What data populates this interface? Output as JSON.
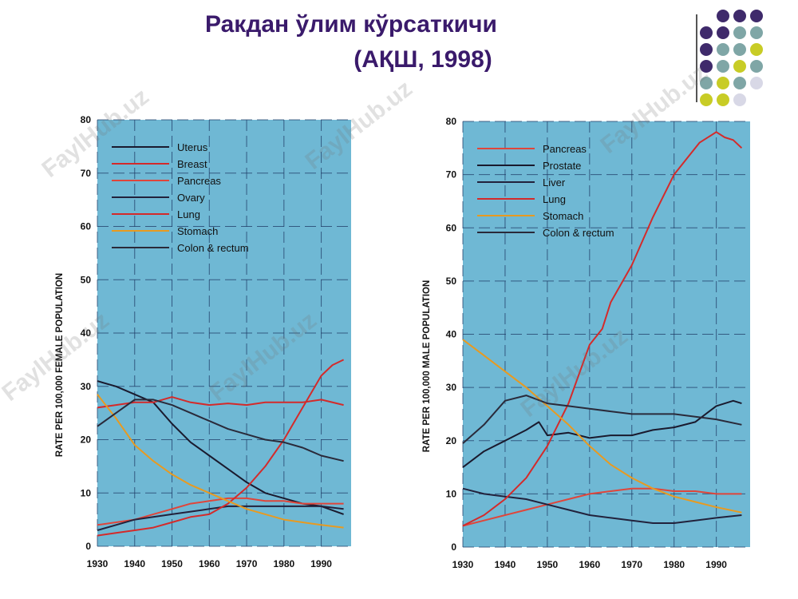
{
  "slide": {
    "title_line1": "Ракдан ўлим кўрсаткичи",
    "title_line2": "(АҚШ, 1998)",
    "watermark": "FaylHub.uz"
  },
  "decor_colors": [
    "#3f2a6b",
    "#7fa6a6",
    "#c8cc26",
    "#d8d8e6"
  ],
  "chart_data": [
    {
      "type": "line",
      "ylabel": "RATE PER 100,000 FEMALE POPULATION",
      "xlabel": "",
      "xlim": [
        1930,
        1998
      ],
      "ylim": [
        0,
        80
      ],
      "xticks": [
        1930,
        1940,
        1950,
        1960,
        1970,
        1980,
        1990
      ],
      "yticks": [
        0,
        10,
        20,
        30,
        40,
        50,
        60,
        70,
        80
      ],
      "legend_position": "top-left",
      "series": [
        {
          "name": "Uterus",
          "color": "#1a1a2e",
          "points": [
            [
              1930,
              31
            ],
            [
              1935,
              30
            ],
            [
              1940,
              28.5
            ],
            [
              1945,
              27
            ],
            [
              1950,
              23
            ],
            [
              1955,
              19.5
            ],
            [
              1960,
              17
            ],
            [
              1965,
              14.5
            ],
            [
              1970,
              12
            ],
            [
              1975,
              10
            ],
            [
              1980,
              9
            ],
            [
              1985,
              8
            ],
            [
              1990,
              7.5
            ],
            [
              1996,
              6
            ]
          ]
        },
        {
          "name": "Breast",
          "color": "#d42a2a",
          "points": [
            [
              1930,
              26
            ],
            [
              1935,
              26.5
            ],
            [
              1940,
              27
            ],
            [
              1945,
              27
            ],
            [
              1950,
              28
            ],
            [
              1955,
              27
            ],
            [
              1960,
              26.5
            ],
            [
              1965,
              26.8
            ],
            [
              1970,
              26.5
            ],
            [
              1975,
              27
            ],
            [
              1980,
              27
            ],
            [
              1985,
              27
            ],
            [
              1990,
              27.5
            ],
            [
              1996,
              26.5
            ]
          ]
        },
        {
          "name": "Pancreas",
          "color": "#e0453a",
          "points": [
            [
              1930,
              4
            ],
            [
              1935,
              4.5
            ],
            [
              1940,
              5
            ],
            [
              1945,
              6
            ],
            [
              1950,
              7
            ],
            [
              1955,
              8
            ],
            [
              1960,
              8.5
            ],
            [
              1965,
              9
            ],
            [
              1970,
              9
            ],
            [
              1975,
              8.5
            ],
            [
              1980,
              8.5
            ],
            [
              1985,
              8
            ],
            [
              1990,
              8
            ],
            [
              1996,
              8
            ]
          ]
        },
        {
          "name": "Ovary",
          "color": "#22223c",
          "points": [
            [
              1930,
              3
            ],
            [
              1935,
              4
            ],
            [
              1940,
              5
            ],
            [
              1945,
              5.5
            ],
            [
              1950,
              6
            ],
            [
              1955,
              6.5
            ],
            [
              1960,
              7
            ],
            [
              1965,
              7.5
            ],
            [
              1970,
              7.5
            ],
            [
              1975,
              7.5
            ],
            [
              1980,
              7.5
            ],
            [
              1985,
              7.5
            ],
            [
              1990,
              7.5
            ],
            [
              1996,
              7
            ]
          ]
        },
        {
          "name": "Lung",
          "color": "#d42a2a",
          "points": [
            [
              1930,
              2
            ],
            [
              1935,
              2.5
            ],
            [
              1940,
              3
            ],
            [
              1945,
              3.5
            ],
            [
              1950,
              4.5
            ],
            [
              1955,
              5.5
            ],
            [
              1960,
              6
            ],
            [
              1965,
              8
            ],
            [
              1970,
              11
            ],
            [
              1975,
              15
            ],
            [
              1980,
              20
            ],
            [
              1985,
              26
            ],
            [
              1990,
              32
            ],
            [
              1993,
              34
            ],
            [
              1996,
              35
            ]
          ]
        },
        {
          "name": "Stomach",
          "color": "#e89a20",
          "points": [
            [
              1930,
              28.5
            ],
            [
              1935,
              24
            ],
            [
              1940,
              19
            ],
            [
              1945,
              16
            ],
            [
              1950,
              13.5
            ],
            [
              1955,
              11.5
            ],
            [
              1960,
              10
            ],
            [
              1965,
              8.5
            ],
            [
              1970,
              7
            ],
            [
              1975,
              6
            ],
            [
              1980,
              5
            ],
            [
              1985,
              4.5
            ],
            [
              1990,
              4
            ],
            [
              1996,
              3.5
            ]
          ]
        },
        {
          "name": "Colon & rectum",
          "color": "#2a2a3a",
          "points": [
            [
              1930,
              22.5
            ],
            [
              1935,
              25
            ],
            [
              1940,
              27.5
            ],
            [
              1945,
              27.5
            ],
            [
              1950,
              26.5
            ],
            [
              1955,
              25
            ],
            [
              1960,
              23.5
            ],
            [
              1965,
              22
            ],
            [
              1970,
              21
            ],
            [
              1975,
              20
            ],
            [
              1980,
              19.5
            ],
            [
              1985,
              18.5
            ],
            [
              1990,
              17
            ],
            [
              1996,
              16
            ]
          ]
        }
      ]
    },
    {
      "type": "line",
      "ylabel": "RATE PER 100,000 MALE POPULATION",
      "xlabel": "",
      "xlim": [
        1930,
        1998
      ],
      "ylim": [
        0,
        80
      ],
      "xticks": [
        1930,
        1940,
        1950,
        1960,
        1970,
        1980,
        1990
      ],
      "yticks": [
        0,
        10,
        20,
        30,
        40,
        50,
        60,
        70,
        80
      ],
      "legend_position": "top-left",
      "series": [
        {
          "name": "Pancreas",
          "color": "#e0453a",
          "points": [
            [
              1930,
              4
            ],
            [
              1935,
              5
            ],
            [
              1940,
              6
            ],
            [
              1945,
              7
            ],
            [
              1950,
              8
            ],
            [
              1955,
              9
            ],
            [
              1960,
              10
            ],
            [
              1965,
              10.5
            ],
            [
              1970,
              11
            ],
            [
              1975,
              11
            ],
            [
              1980,
              10.5
            ],
            [
              1985,
              10.5
            ],
            [
              1990,
              10
            ],
            [
              1996,
              10
            ]
          ]
        },
        {
          "name": "Prostate",
          "color": "#1a1a2e",
          "points": [
            [
              1930,
              15
            ],
            [
              1935,
              18
            ],
            [
              1940,
              20
            ],
            [
              1945,
              22
            ],
            [
              1948,
              23.5
            ],
            [
              1950,
              21
            ],
            [
              1955,
              21.5
            ],
            [
              1960,
              20.5
            ],
            [
              1965,
              21
            ],
            [
              1970,
              21
            ],
            [
              1975,
              22
            ],
            [
              1980,
              22.5
            ],
            [
              1985,
              23.5
            ],
            [
              1990,
              26.5
            ],
            [
              1994,
              27.5
            ],
            [
              1996,
              27
            ]
          ]
        },
        {
          "name": "Liver",
          "color": "#22223c",
          "points": [
            [
              1930,
              11
            ],
            [
              1935,
              10
            ],
            [
              1940,
              9.5
            ],
            [
              1945,
              9
            ],
            [
              1950,
              8
            ],
            [
              1955,
              7
            ],
            [
              1960,
              6
            ],
            [
              1965,
              5.5
            ],
            [
              1970,
              5
            ],
            [
              1975,
              4.5
            ],
            [
              1980,
              4.5
            ],
            [
              1985,
              5
            ],
            [
              1990,
              5.5
            ],
            [
              1996,
              6
            ]
          ]
        },
        {
          "name": "Lung",
          "color": "#d42a2a",
          "points": [
            [
              1930,
              4
            ],
            [
              1935,
              6
            ],
            [
              1940,
              9
            ],
            [
              1945,
              13
            ],
            [
              1950,
              19
            ],
            [
              1955,
              27
            ],
            [
              1960,
              38
            ],
            [
              1963,
              41
            ],
            [
              1965,
              46
            ],
            [
              1970,
              53
            ],
            [
              1975,
              62
            ],
            [
              1980,
              70
            ],
            [
              1983,
              73
            ],
            [
              1986,
              76
            ],
            [
              1990,
              78
            ],
            [
              1992,
              77
            ],
            [
              1994,
              76.5
            ],
            [
              1996,
              75
            ]
          ]
        },
        {
          "name": "Stomach",
          "color": "#e89a20",
          "points": [
            [
              1930,
              39
            ],
            [
              1935,
              36
            ],
            [
              1940,
              33
            ],
            [
              1945,
              30
            ],
            [
              1950,
              26.5
            ],
            [
              1955,
              23
            ],
            [
              1960,
              19
            ],
            [
              1965,
              15.5
            ],
            [
              1970,
              13
            ],
            [
              1975,
              11
            ],
            [
              1980,
              9.5
            ],
            [
              1985,
              8.5
            ],
            [
              1990,
              7.5
            ],
            [
              1996,
              6.5
            ]
          ]
        },
        {
          "name": "Colon & rectum",
          "color": "#2a2a3a",
          "points": [
            [
              1930,
              19.5
            ],
            [
              1935,
              23
            ],
            [
              1940,
              27.5
            ],
            [
              1945,
              28.5
            ],
            [
              1950,
              27
            ],
            [
              1955,
              26.5
            ],
            [
              1960,
              26
            ],
            [
              1965,
              25.5
            ],
            [
              1970,
              25
            ],
            [
              1975,
              25
            ],
            [
              1980,
              25
            ],
            [
              1985,
              24.5
            ],
            [
              1990,
              24
            ],
            [
              1996,
              23
            ]
          ]
        }
      ]
    }
  ]
}
